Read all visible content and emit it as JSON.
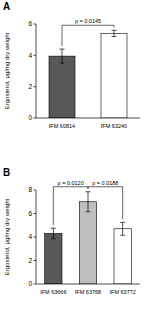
{
  "chart_data": [
    {
      "type": "bar",
      "title": "A",
      "y_label": "Ergosterol, µg/mg dry weight",
      "categories": [
        "IFM 60814",
        "IFM 63240"
      ],
      "values": [
        3.95,
        5.4
      ],
      "errors": [
        0.45,
        0.2
      ],
      "colors": [
        "#595959",
        "#ffffff"
      ],
      "ylim": [
        0,
        6
      ],
      "yticks": [
        0,
        2,
        4,
        6
      ],
      "grid": false,
      "annotations": [
        {
          "text": "p = 0.0145",
          "from": 0,
          "to": 1
        }
      ]
    },
    {
      "type": "bar",
      "title": "B",
      "y_label": "Ergosterol, µg/mg dry weight",
      "categories": [
        "IFM 63666",
        "IFM 63768",
        "IFM 63772"
      ],
      "values": [
        4.3,
        7.0,
        4.7
      ],
      "errors": [
        0.45,
        0.85,
        0.55
      ],
      "colors": [
        "#595959",
        "#bfbfbf",
        "#ffffff"
      ],
      "ylim": [
        0,
        8
      ],
      "yticks": [
        0,
        2,
        4,
        6,
        8
      ],
      "grid": false,
      "annotations": [
        {
          "text": "p = 0.0120",
          "from": 0,
          "to": 1
        },
        {
          "text": "p = 0.0188",
          "from": 1,
          "to": 2
        }
      ]
    }
  ]
}
